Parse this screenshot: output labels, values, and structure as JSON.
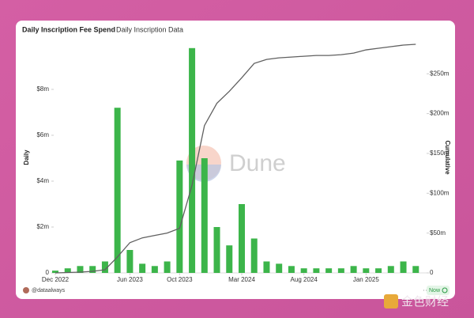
{
  "chart_data": {
    "type": "bar_line",
    "title": "Daily Inscription Fee Spend",
    "subtitle": "Daily Inscription Data",
    "watermark": "Dune",
    "author": "@dataalways",
    "status": "Now",
    "site_logo": "金色财经",
    "x": [
      "2022-12",
      "2023-01",
      "2023-02",
      "2023-03",
      "2023-04",
      "2023-05",
      "2023-06",
      "2023-07",
      "2023-08",
      "2023-09",
      "2023-10",
      "2023-11",
      "2023-12",
      "2024-01",
      "2024-02",
      "2024-03",
      "2024-04",
      "2024-05",
      "2024-06",
      "2024-07",
      "2024-08",
      "2024-09",
      "2024-10",
      "2024-11",
      "2024-12",
      "2025-01",
      "2025-02",
      "2025-03",
      "2025-04",
      "2025-05"
    ],
    "xlim": [
      "2022-12",
      "2025-06"
    ],
    "xticks": [
      {
        "value": "2022-12",
        "label": "Dec 2022"
      },
      {
        "value": "2023-06",
        "label": "Jun 2023"
      },
      {
        "value": "2023-10",
        "label": "Oct 2023"
      },
      {
        "value": "2024-03",
        "label": "Mar 2024"
      },
      {
        "value": "2024-08",
        "label": "Aug 2024"
      },
      {
        "value": "2025-01",
        "label": "Jan 2025"
      }
    ],
    "series": [
      {
        "name": "Daily",
        "color": "#3cb54a",
        "values": [
          100000,
          200000,
          300000,
          300000,
          500000,
          7200000,
          1000000,
          400000,
          300000,
          500000,
          4900000,
          9800000,
          5000000,
          2000000,
          1200000,
          3000000,
          1500000,
          500000,
          400000,
          300000,
          200000,
          200000,
          200000,
          200000,
          300000,
          200000,
          200000,
          300000,
          500000,
          300000
        ]
      },
      {
        "name": "Cumulative",
        "color": "#606060",
        "axis": "y2",
        "values": [
          0,
          500000,
          1000000,
          2000000,
          4000000,
          20000000,
          38000000,
          44000000,
          47000000,
          50000000,
          56000000,
          110000000,
          185000000,
          213000000,
          228000000,
          245000000,
          263000000,
          268000000,
          270000000,
          271000000,
          272000000,
          273000000,
          273000000,
          274000000,
          276000000,
          280000000,
          282000000,
          284000000,
          286000000,
          287000000
        ]
      }
    ],
    "ylim": [
      0,
      10000000
    ],
    "yticks": [
      0,
      {
        "value": 2000000,
        "label": "$2m"
      },
      {
        "value": 4000000,
        "label": "$4m"
      },
      {
        "value": 6000000,
        "label": "$6m"
      },
      {
        "value": 8000000,
        "label": "$8m"
      }
    ],
    "y2lim": [
      0,
      288000000
    ],
    "y2ticks": [
      0,
      {
        "value": 50000000,
        "label": "$50m"
      },
      {
        "value": 100000000,
        "label": "$100m"
      },
      {
        "value": 150000000,
        "label": "$150m"
      },
      {
        "value": 200000000,
        "label": "$200m"
      },
      {
        "value": 250000000,
        "label": "$250m"
      }
    ]
  }
}
